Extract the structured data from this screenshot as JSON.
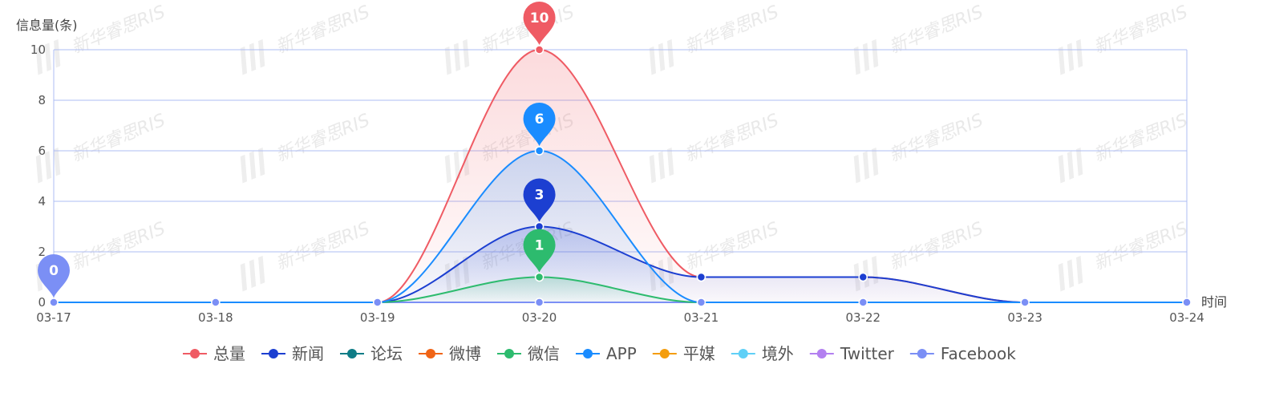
{
  "chart_data": {
    "type": "line",
    "ylabel": "信息量(条)",
    "xlabel": "时间",
    "ylim": [
      0,
      10
    ],
    "yticks": [
      0,
      2,
      4,
      6,
      8,
      10
    ],
    "categories": [
      "03-17",
      "03-18",
      "03-19",
      "03-20",
      "03-21",
      "03-22",
      "03-23",
      "03-24"
    ],
    "smooth": true,
    "grid": true,
    "legend_position": "bottom",
    "series": [
      {
        "name": "总量",
        "color": "#ef5b64",
        "values": [
          0,
          0,
          0,
          10,
          1,
          1,
          0,
          0
        ],
        "area": true,
        "pins": [
          {
            "index": 3,
            "label": "10"
          }
        ]
      },
      {
        "name": "新闻",
        "color": "#1c3fd1",
        "values": [
          0,
          0,
          0,
          3,
          1,
          1,
          0,
          0
        ],
        "area": true,
        "pins": [
          {
            "index": 3,
            "label": "3"
          }
        ]
      },
      {
        "name": "论坛",
        "color": "#0e7c86",
        "values": [
          0,
          0,
          0,
          0,
          0,
          0,
          0,
          0
        ],
        "area": false,
        "pins": []
      },
      {
        "name": "微博",
        "color": "#f06416",
        "values": [
          0,
          0,
          0,
          0,
          0,
          0,
          0,
          0
        ],
        "area": false,
        "pins": []
      },
      {
        "name": "微信",
        "color": "#2dbb6e",
        "values": [
          0,
          0,
          0,
          1,
          0,
          0,
          0,
          0
        ],
        "area": true,
        "pins": [
          {
            "index": 3,
            "label": "1"
          }
        ]
      },
      {
        "name": "APP",
        "color": "#1a8cff",
        "values": [
          0,
          0,
          0,
          6,
          0,
          0,
          0,
          0
        ],
        "area": true,
        "pins": [
          {
            "index": 3,
            "label": "6"
          }
        ]
      },
      {
        "name": "平媒",
        "color": "#f49d0c",
        "values": [
          0,
          0,
          0,
          0,
          0,
          0,
          0,
          0
        ],
        "area": false,
        "pins": []
      },
      {
        "name": "境外",
        "color": "#5fd0f7",
        "values": [
          0,
          0,
          0,
          0,
          0,
          0,
          0,
          0
        ],
        "area": false,
        "pins": []
      },
      {
        "name": "Twitter",
        "color": "#b380f0",
        "values": [
          0,
          0,
          0,
          0,
          0,
          0,
          0,
          0
        ],
        "area": false,
        "pins": []
      },
      {
        "name": "Facebook",
        "color": "#7b8ff5",
        "values": [
          0,
          0,
          0,
          0,
          0,
          0,
          0,
          0
        ],
        "area": false,
        "pins": [
          {
            "index": 0,
            "label": "0"
          }
        ]
      }
    ]
  },
  "watermark_text": "新华睿思RIS"
}
